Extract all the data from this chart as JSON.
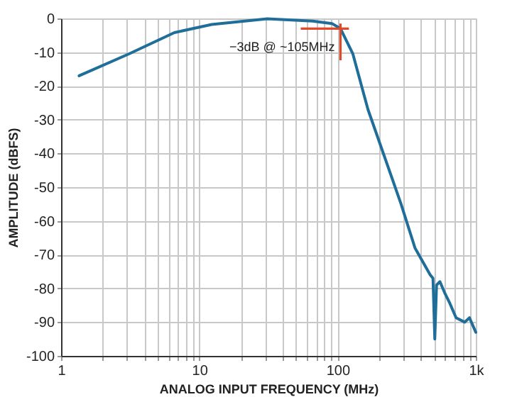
{
  "chart_data": {
    "type": "line",
    "xlabel": "ANALOG INPUT FREQUENCY (MHz)",
    "ylabel": "AMPLITUDE (dBFS)",
    "x": [
      1.35,
      3.1,
      6.6,
      12.3,
      31,
      66,
      91,
      105,
      129,
      166,
      288,
      363,
      468,
      490,
      505,
      520,
      550,
      600,
      650,
      720,
      830,
      900,
      1000
    ],
    "series": [
      {
        "color": "#1f6e99",
        "values": [
          -17,
          -10.5,
          -4.2,
          -1.8,
          -0.1,
          -0.8,
          -1.5,
          -3,
          -10.5,
          -27,
          -55,
          -68,
          -76,
          -77,
          -95,
          -79,
          -78,
          -81.6,
          -84.5,
          -88.7,
          -90,
          -88.7,
          -93
        ]
      }
    ],
    "xlim": [
      1,
      1000
    ],
    "ylim": [
      -100,
      0
    ],
    "xticks": [
      1,
      {
        "value": 2,
        "label": null
      },
      {
        "value": 3,
        "label": null
      },
      {
        "value": 4,
        "label": null
      },
      {
        "value": 5,
        "label": null
      },
      {
        "value": 6,
        "label": null
      },
      {
        "value": 7,
        "label": null
      },
      {
        "value": 8,
        "label": null
      },
      {
        "value": 9,
        "label": null
      },
      10,
      {
        "value": 20,
        "label": null
      },
      {
        "value": 30,
        "label": null
      },
      {
        "value": 40,
        "label": null
      },
      {
        "value": 50,
        "label": null
      },
      {
        "value": 60,
        "label": null
      },
      {
        "value": 70,
        "label": null
      },
      {
        "value": 80,
        "label": null
      },
      {
        "value": 90,
        "label": null
      },
      100,
      {
        "value": 200,
        "label": null
      },
      {
        "value": 300,
        "label": null
      },
      {
        "value": 400,
        "label": null
      },
      {
        "value": 500,
        "label": null
      },
      {
        "value": 600,
        "label": null
      },
      {
        "value": 700,
        "label": null
      },
      {
        "value": 800,
        "label": null
      },
      {
        "value": 900,
        "label": null
      },
      {
        "value": 1000,
        "label": "1k"
      }
    ],
    "yticks": [
      0,
      -10,
      -20,
      -30,
      -40,
      -50,
      -60,
      -70,
      -80,
      -90,
      -100
    ],
    "log": "x",
    "grid": true,
    "marker": "none",
    "line_style": "solid",
    "annotations": [
      {
        "text": "−3dB @ ~105MHz",
        "x": 105,
        "y": -3
      }
    ]
  }
}
